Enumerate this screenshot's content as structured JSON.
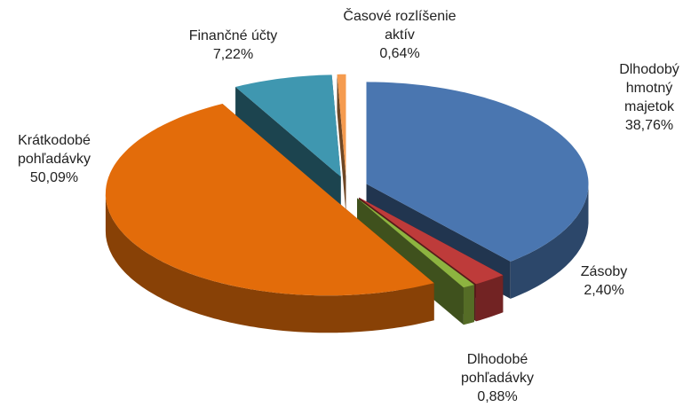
{
  "chart_data": {
    "type": "pie",
    "categories": [
      "Dlhodobý hmotný majetok",
      "Zásoby",
      "Dlhodobé pohľadávky",
      "Krátkodobé pohľadávky",
      "Finančné účty",
      "Časové rozlíšenie aktív"
    ],
    "values": [
      38.76,
      2.4,
      0.88,
      50.09,
      7.22,
      0.64
    ],
    "value_labels": [
      "38,76%",
      "2,40%",
      "0,88%",
      "50,09%",
      "7,22%",
      "0,64%"
    ],
    "colors": [
      "#4a76b0",
      "#be3b3a",
      "#8db440",
      "#e36c0a",
      "#3f97b0",
      "#f59b4f"
    ]
  }
}
